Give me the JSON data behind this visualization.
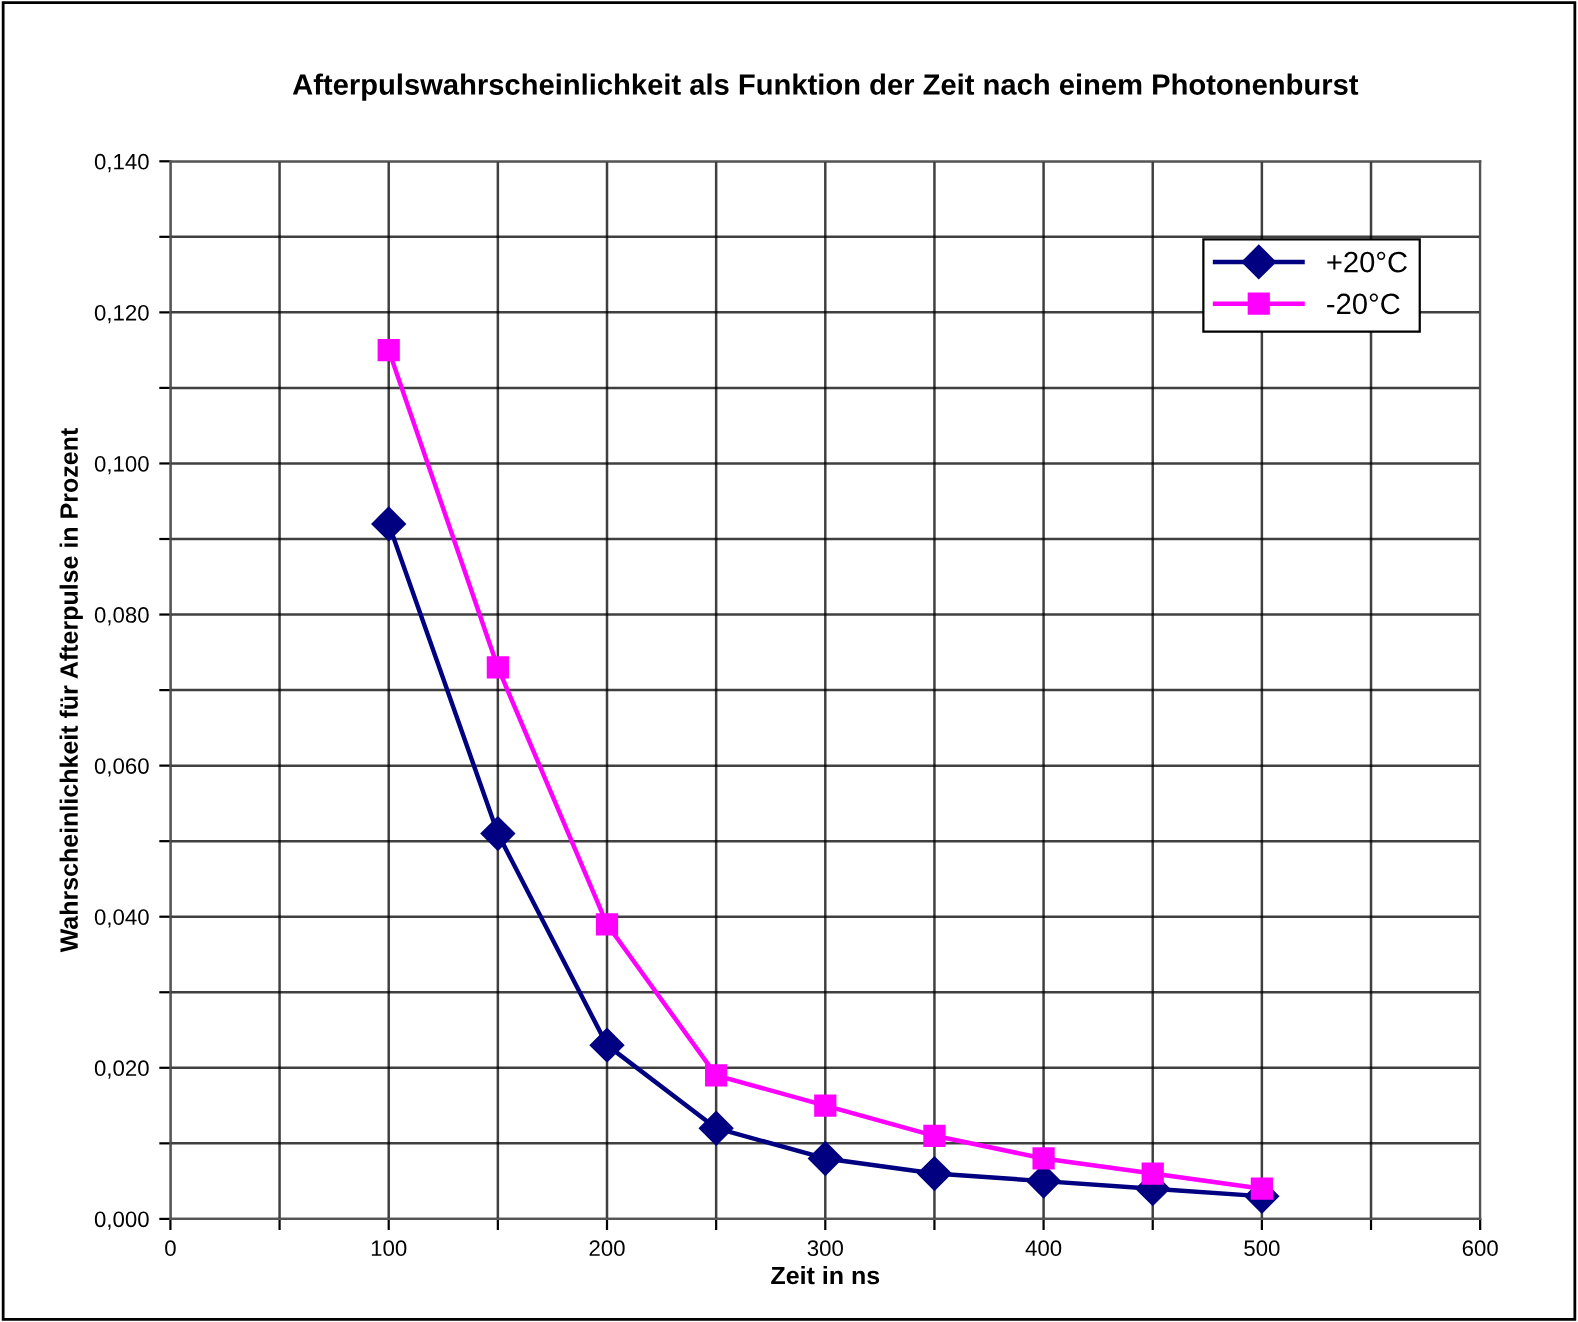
{
  "chart_data": {
    "type": "line",
    "title": "Afterpulswahrscheinlichkeit als Funktion der Zeit nach einem Photonenburst",
    "xlabel": "Zeit in ns",
    "ylabel": "Wahrscheinlichkeit für Afterpulse in Prozent",
    "x": [
      100,
      150,
      200,
      250,
      300,
      350,
      400,
      450,
      500
    ],
    "series": [
      {
        "name": "+20°C",
        "color": "#000080",
        "marker": "diamond",
        "values": [
          0.092,
          0.051,
          0.023,
          0.012,
          0.008,
          0.006,
          0.005,
          0.004,
          0.003
        ]
      },
      {
        "name": "-20°C",
        "color": "#ff00ff",
        "marker": "square",
        "values": [
          0.115,
          0.073,
          0.039,
          0.019,
          0.015,
          0.011,
          0.008,
          0.006,
          0.004
        ]
      }
    ],
    "xlim": [
      0,
      600
    ],
    "xticks": [
      0,
      {
        "value": 50,
        "label": null
      },
      100,
      {
        "value": 150,
        "label": null
      },
      200,
      {
        "value": 250,
        "label": null
      },
      300,
      {
        "value": 350,
        "label": null
      },
      400,
      {
        "value": 450,
        "label": null
      },
      500,
      {
        "value": 550,
        "label": null
      },
      600
    ],
    "ylim": [
      0,
      0.14
    ],
    "yticks": [
      {
        "value": 0,
        "label": "0,000"
      },
      {
        "value": 0.01,
        "label": null
      },
      {
        "value": 0.02,
        "label": "0,020"
      },
      {
        "value": 0.03,
        "label": null
      },
      {
        "value": 0.04,
        "label": "0,040"
      },
      {
        "value": 0.05,
        "label": null
      },
      {
        "value": 0.06,
        "label": "0,060"
      },
      {
        "value": 0.07,
        "label": null
      },
      {
        "value": 0.08,
        "label": "0,080"
      },
      {
        "value": 0.09,
        "label": null
      },
      {
        "value": 0.1,
        "label": "0,100"
      },
      {
        "value": 0.11,
        "label": null
      },
      {
        "value": 0.12,
        "label": "0,120"
      },
      {
        "value": 0.13,
        "label": null
      },
      {
        "value": 0.14,
        "label": "0,140"
      }
    ],
    "grid": true,
    "legend": "top right",
    "line_style": "solid"
  }
}
